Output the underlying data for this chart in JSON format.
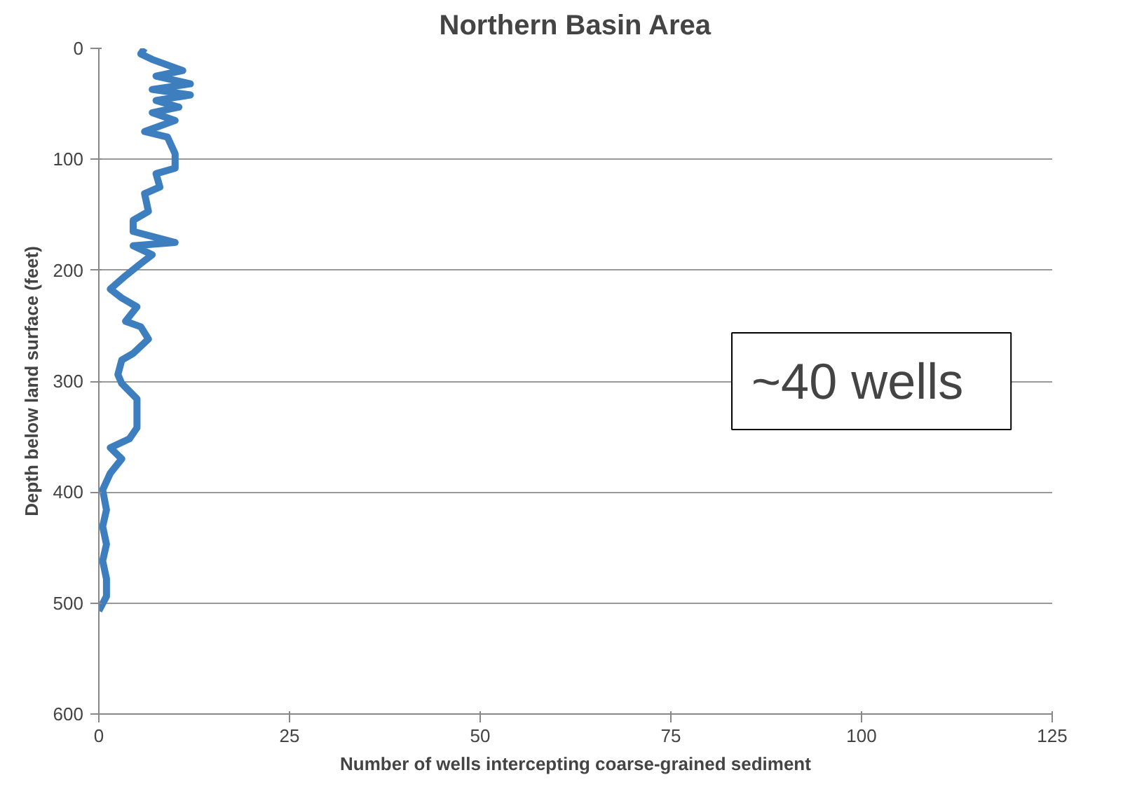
{
  "chart_data": {
    "type": "line",
    "title": "Northern Basin Area",
    "xlabel": "Number of wells intercepting coarse-grained sediment",
    "ylabel": "Depth below land surface (feet)",
    "annotations": [
      "~40 wells"
    ],
    "xlim": [
      0,
      125
    ],
    "xticks": [
      0,
      25,
      50,
      75,
      100,
      125
    ],
    "ylim": [
      600,
      0
    ],
    "yticks": [
      0,
      100,
      200,
      300,
      400,
      500,
      600
    ],
    "grid": "y",
    "series": [
      {
        "color": "#3d7ebf",
        "x": [
          6,
          5.5,
          7,
          11,
          7.5,
          12,
          7,
          12,
          7.5,
          10.5,
          7,
          10,
          6,
          9,
          10,
          10,
          7.5,
          8,
          6,
          6.5,
          4.5,
          4.5,
          10,
          4.5,
          7,
          5.5,
          3.5,
          1.5,
          3,
          5,
          3.5,
          5.5,
          6.5,
          4.5,
          3,
          2.5,
          3,
          5,
          5,
          4,
          1.5,
          3,
          1.5,
          0.5,
          1,
          0.5,
          1,
          0.5,
          1,
          1,
          0
        ],
        "values": [
          0,
          5,
          10,
          20,
          25,
          32,
          37,
          42,
          47,
          53,
          58,
          65,
          75,
          80,
          95,
          108,
          113,
          125,
          131,
          147,
          155,
          165,
          175,
          178,
          186,
          194,
          205,
          217,
          225,
          233,
          246,
          251,
          262,
          275,
          281,
          294,
          302,
          316,
          342,
          352,
          360,
          370,
          383,
          398,
          416,
          431,
          447,
          462,
          478,
          494,
          507
        ]
      }
    ]
  }
}
